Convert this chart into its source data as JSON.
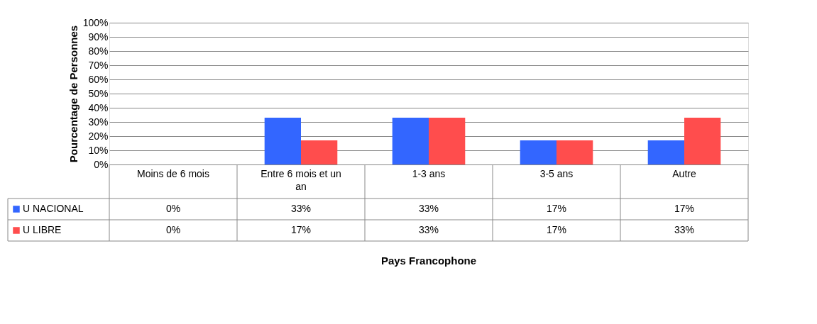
{
  "chart_data": {
    "type": "bar",
    "annotations": [
      "Pays Francophone"
    ],
    "ylabel": "Pourcentage de Personnes",
    "categories": [
      "Moins de 6 mois",
      "Entre 6 mois et un an",
      "1-3 ans",
      "3-5 ans",
      "Autre"
    ],
    "series": [
      {
        "name": "U NACIONAL",
        "color": "#3366ff",
        "values": [
          0,
          33,
          33,
          17,
          17
        ],
        "value_labels": [
          "0%",
          "33%",
          "33%",
          "17%",
          "17%"
        ]
      },
      {
        "name": "U LIBRE",
        "color": "#ff4d4d",
        "values": [
          0,
          17,
          33,
          17,
          33
        ],
        "value_labels": [
          "0%",
          "17%",
          "33%",
          "17%",
          "33%"
        ]
      }
    ],
    "ylim": [
      0,
      100
    ],
    "yticks": [
      {
        "value": 0,
        "label": "0%"
      },
      {
        "value": 10,
        "label": "10%"
      },
      {
        "value": 20,
        "label": "20%"
      },
      {
        "value": 30,
        "label": "30%"
      },
      {
        "value": 40,
        "label": "40%"
      },
      {
        "value": 50,
        "label": "50%"
      },
      {
        "value": 60,
        "label": "60%"
      },
      {
        "value": 70,
        "label": "70%"
      },
      {
        "value": 80,
        "label": "80%"
      },
      {
        "value": 90,
        "label": "90%"
      },
      {
        "value": 100,
        "label": "100%"
      }
    ],
    "grid": "y",
    "legend": "bottom"
  }
}
